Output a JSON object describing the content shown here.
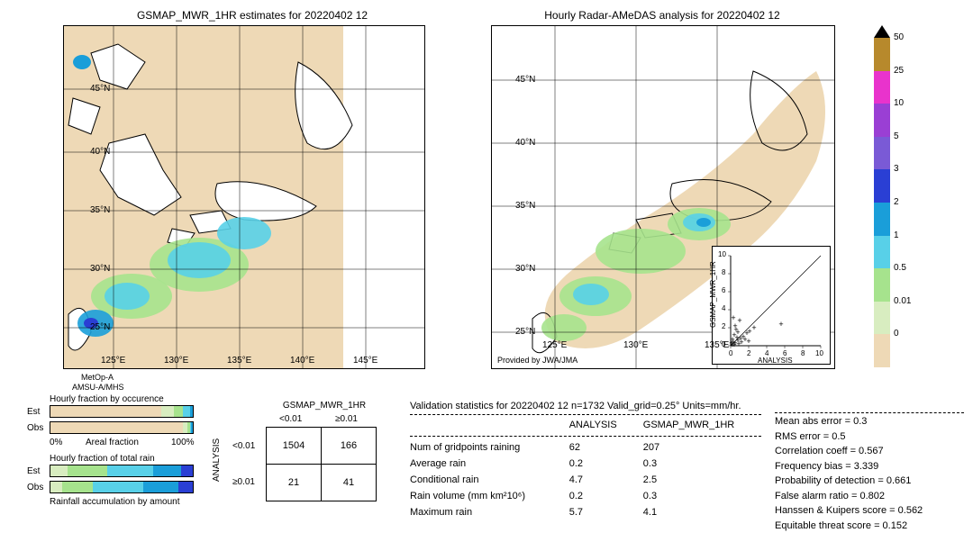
{
  "left_map": {
    "title": "GSMAP_MWR_1HR estimates for 20220402 12",
    "x_ticks": [
      "125°E",
      "130°E",
      "135°E",
      "140°E",
      "145°E"
    ],
    "y_ticks": [
      "45°N",
      "40°N",
      "35°N",
      "30°N",
      "25°N"
    ],
    "satellite_label": "MetOp-A",
    "sensor_label": "AMSU-A/MHS",
    "bg_color": "#ffffff",
    "land_color": "#eed9b6",
    "precip_colors": [
      "#a6e38d",
      "#58d0e8",
      "#1a9ed9",
      "#2a3fd4"
    ],
    "grid_color": "#000000"
  },
  "right_map": {
    "title": "Hourly Radar-AMeDAS analysis for 20220402 12",
    "x_ticks": [
      "125°E",
      "130°E",
      "135°E"
    ],
    "y_ticks": [
      "45°N",
      "40°N",
      "35°N",
      "30°N",
      "25°N"
    ],
    "provider": "Provided by JWA/JMA",
    "bg_color": "#ffffff",
    "land_color": "#eed9b6",
    "precip_colors": [
      "#a6e38d",
      "#58d0e8",
      "#1a9ed9"
    ]
  },
  "colorbar": {
    "labels": [
      "50",
      "25",
      "10",
      "5",
      "3",
      "2",
      "1",
      "0.5",
      "0.01",
      "0"
    ],
    "colors": [
      "#b7892c",
      "#e933cc",
      "#9a3fd4",
      "#7a5ad6",
      "#2a3fd4",
      "#1a9ed9",
      "#58d0e8",
      "#a6e38d",
      "#d8edc0",
      "#eed9b6"
    ]
  },
  "scatter": {
    "xlabel": "ANALYSIS",
    "ylabel": "GSMAP_MWR_1HR",
    "ticks": [
      "0",
      "2",
      "4",
      "6",
      "8",
      "10"
    ],
    "points": [
      [
        0.2,
        0.1
      ],
      [
        0.3,
        0.4
      ],
      [
        0.5,
        0.3
      ],
      [
        0.8,
        0.6
      ],
      [
        1.1,
        0.8
      ],
      [
        0.4,
        1.2
      ],
      [
        1.4,
        1.0
      ],
      [
        0.6,
        1.8
      ],
      [
        1.8,
        1.4
      ],
      [
        0.9,
        0.2
      ],
      [
        0.2,
        0.7
      ],
      [
        1.2,
        0.4
      ],
      [
        2.1,
        1.6
      ],
      [
        0.5,
        2.2
      ],
      [
        1.0,
        2.8
      ],
      [
        2.6,
        2.0
      ],
      [
        0.3,
        3.1
      ],
      [
        5.6,
        2.4
      ],
      [
        0.7,
        0.9
      ],
      [
        0.1,
        0.3
      ],
      [
        1.6,
        0.7
      ],
      [
        0.4,
        0.1
      ],
      [
        2.0,
        0.5
      ],
      [
        0.8,
        1.5
      ]
    ]
  },
  "occurrence": {
    "title": "Hourly fraction by occurence",
    "rows": [
      "Est",
      "Obs"
    ],
    "axis_label": "Areal fraction",
    "axis_ticks": [
      "0%",
      "100%"
    ],
    "est_segs": [
      [
        "#eed9b6",
        78
      ],
      [
        "#d8edc0",
        9
      ],
      [
        "#a6e38d",
        6
      ],
      [
        "#58d0e8",
        5
      ],
      [
        "#1a9ed9",
        2
      ]
    ],
    "obs_segs": [
      [
        "#eed9b6",
        93
      ],
      [
        "#d8edc0",
        3
      ],
      [
        "#a6e38d",
        2
      ],
      [
        "#58d0e8",
        1
      ],
      [
        "#1a9ed9",
        1
      ]
    ]
  },
  "total_rain": {
    "title": "Hourly fraction of total rain",
    "rows": [
      "Est",
      "Obs"
    ],
    "footer": "Rainfall accumulation by amount",
    "est_segs": [
      [
        "#d8edc0",
        12
      ],
      [
        "#a6e38d",
        28
      ],
      [
        "#58d0e8",
        32
      ],
      [
        "#1a9ed9",
        20
      ],
      [
        "#2a3fd4",
        8
      ]
    ],
    "obs_segs": [
      [
        "#d8edc0",
        8
      ],
      [
        "#a6e38d",
        22
      ],
      [
        "#58d0e8",
        35
      ],
      [
        "#1a9ed9",
        25
      ],
      [
        "#2a3fd4",
        10
      ]
    ]
  },
  "contingency": {
    "col_title": "GSMAP_MWR_1HR",
    "row_title": "ANALYSIS",
    "cols": [
      "<0.01",
      "≥0.01"
    ],
    "rows": [
      "<0.01",
      "≥0.01"
    ],
    "cells": [
      [
        "1504",
        "166"
      ],
      [
        "21",
        "41"
      ]
    ]
  },
  "validation": {
    "title": "Validation statistics for 20220402 12  n=1732 Valid_grid=0.25° Units=mm/hr.",
    "col_headers": [
      "ANALYSIS",
      "GSMAP_MWR_1HR"
    ],
    "rows": [
      [
        "Num of gridpoints raining",
        "62",
        "207"
      ],
      [
        "Average rain",
        "0.2",
        "0.3"
      ],
      [
        "Conditional rain",
        "4.7",
        "2.5"
      ],
      [
        "Rain volume (mm km²10⁶)",
        "0.2",
        "0.3"
      ],
      [
        "Maximum rain",
        "5.7",
        "4.1"
      ]
    ],
    "metrics": [
      "Mean abs error =    0.3",
      "RMS error =    0.5",
      "Correlation coeff  =  0.567",
      "Frequency bias  =  3.339",
      "Probability of detection  =  0.661",
      "False alarm ratio  =  0.802",
      "Hanssen & Kuipers score =  0.562",
      "Equitable threat score  =  0.152"
    ]
  }
}
